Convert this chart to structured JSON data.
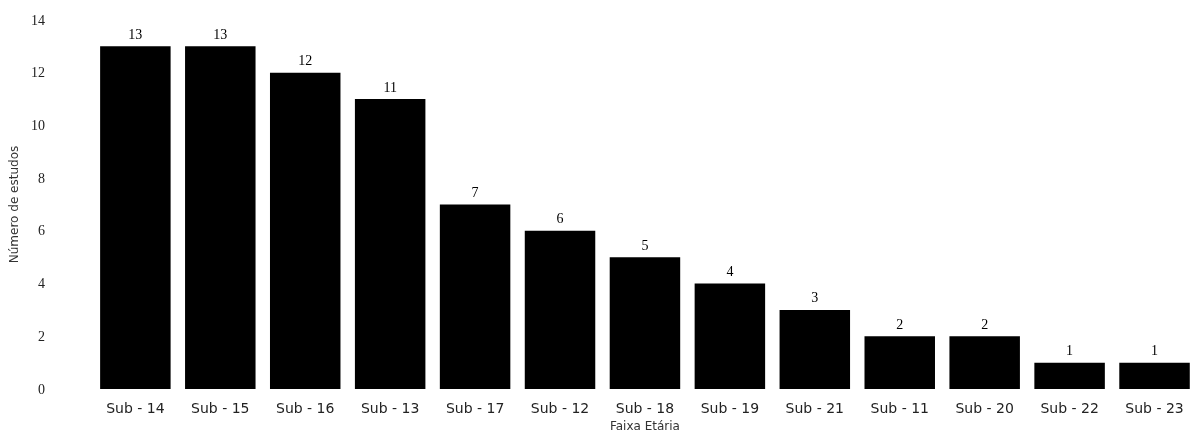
{
  "chart_data": {
    "type": "bar",
    "xlabel": "Faixa Etária",
    "ylabel": "Número de estudos",
    "categories": [
      "Sub - 14",
      "Sub - 15",
      "Sub - 16",
      "Sub - 13",
      "Sub - 17",
      "Sub - 12",
      "Sub - 18",
      "Sub - 19",
      "Sub - 21",
      "Sub - 11",
      "Sub - 20",
      "Sub - 22",
      "Sub - 23"
    ],
    "values": [
      13,
      13,
      12,
      11,
      7,
      6,
      5,
      4,
      3,
      2,
      2,
      1,
      1
    ],
    "color": "#000000",
    "ylim": [
      0,
      14
    ],
    "yticks": [
      0,
      2,
      4,
      6,
      8,
      10,
      12,
      14
    ],
    "grid": false,
    "data_labels": true
  }
}
